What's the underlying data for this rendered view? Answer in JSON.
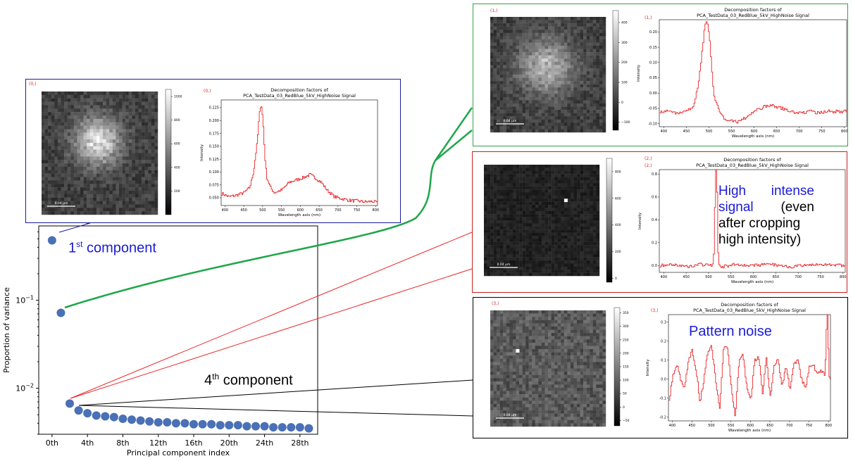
{
  "colors": {
    "scree_points": "#4a70b5",
    "signal": "#e8272a",
    "green_connector": "#1fa64a",
    "red_connector": "#e8272a",
    "black_connector": "#000000",
    "panel0_border": "#1a1aa0",
    "panel1_border": "#3aa04a",
    "panel2_border": "#cc1f1f",
    "panel3_border": "#000000",
    "annotation_text": "#1b1bd6"
  },
  "annotations": {
    "first_component_main": "1",
    "first_component_sup": "st",
    "first_component_rest": " component",
    "fourth_component_main": "4",
    "fourth_component_sup": "th",
    "fourth_component_rest": " component",
    "high_intense_line1a": "High",
    "high_intense_line1b": "intense",
    "high_intense_line2a": "signal",
    "high_intense_line2b": "(even",
    "high_intense_line3": "after cropping",
    "high_intense_line4": "high intensity)",
    "pattern_noise": "Pattern noise"
  },
  "chart_data": [
    {
      "type": "scatter",
      "xlabel": "Principal component index",
      "ylabel": "Proportion of variance",
      "yscale": "log",
      "ylim": [
        0.003,
        0.7
      ],
      "xlim": [
        -1.5,
        30
      ],
      "xtick_labels": [
        "0th",
        "4th",
        "8th",
        "12th",
        "16th",
        "20th",
        "24th",
        "28th"
      ],
      "xtick_values": [
        0,
        4,
        8,
        12,
        16,
        20,
        24,
        28
      ],
      "ytick_labels": [
        {
          "base": "10",
          "exp": "−1",
          "value": 0.1
        },
        {
          "base": "10",
          "exp": "−2",
          "value": 0.01
        }
      ],
      "x": [
        0,
        1,
        2,
        3,
        4,
        5,
        6,
        7,
        8,
        9,
        10,
        11,
        12,
        13,
        14,
        15,
        16,
        17,
        18,
        19,
        20,
        21,
        22,
        23,
        24,
        25,
        26,
        27,
        28,
        29
      ],
      "y": [
        0.48,
        0.072,
        0.0067,
        0.0056,
        0.0052,
        0.0049,
        0.0048,
        0.0047,
        0.0045,
        0.0044,
        0.0043,
        0.0042,
        0.0041,
        0.0041,
        0.004,
        0.004,
        0.0039,
        0.0039,
        0.0039,
        0.0038,
        0.0038,
        0.0038,
        0.0037,
        0.0037,
        0.0037,
        0.0036,
        0.0036,
        0.0036,
        0.0036,
        0.0035
      ]
    },
    {
      "type": "line",
      "panel": 0,
      "index_label": "(0,)",
      "title": [
        "Decomposition factors of",
        "PCA_TestData_03_RedBlue_5kV_HighNoise Signal"
      ],
      "xlabel": "Wavelength axis (nm)",
      "ylabel": "Intensity",
      "xlim": [
        390,
        805
      ],
      "ylim": [
        0.035,
        0.24
      ],
      "xticks": [
        "400",
        "450",
        "500",
        "550",
        "600",
        "650",
        "700",
        "750",
        "800"
      ],
      "xtick_values": [
        400,
        450,
        500,
        550,
        600,
        650,
        700,
        750,
        800
      ],
      "yticks": [
        "0.050",
        "0.075",
        "0.100",
        "0.125",
        "0.150",
        "0.175",
        "0.200",
        "0.225"
      ],
      "ytick_values": [
        0.05,
        0.075,
        0.1,
        0.125,
        0.15,
        0.175,
        0.2,
        0.225
      ],
      "x": [
        392,
        410,
        430,
        450,
        465,
        475,
        485,
        490,
        495,
        500,
        505,
        510,
        520,
        530,
        550,
        570,
        590,
        610,
        625,
        640,
        655,
        670,
        690,
        710,
        730,
        750,
        770,
        790,
        802
      ],
      "y": [
        0.058,
        0.052,
        0.055,
        0.06,
        0.07,
        0.1,
        0.16,
        0.21,
        0.235,
        0.2,
        0.13,
        0.09,
        0.07,
        0.06,
        0.065,
        0.08,
        0.085,
        0.09,
        0.095,
        0.088,
        0.08,
        0.065,
        0.052,
        0.048,
        0.045,
        0.044,
        0.042,
        0.043,
        0.041
      ],
      "image_colorbar_ticks": [
        "1000",
        "800",
        "600",
        "400",
        "200"
      ],
      "colorbar_values": [
        1000,
        800,
        600,
        400,
        200
      ],
      "colorbar_range": [
        0,
        1060
      ],
      "scalebar_label": "0.04 µm"
    },
    {
      "type": "line",
      "panel": 1,
      "index_label": "(1,)",
      "title": [
        "Decomposition factors of",
        "PCA_TestData_03_RedBlue_5kV_HighNoise Signal"
      ],
      "xlabel": "Wavelength axis (nm)",
      "ylabel": "Intensity",
      "xlim": [
        390,
        805
      ],
      "ylim": [
        -0.11,
        0.24
      ],
      "xticks": [
        "400",
        "450",
        "500",
        "550",
        "600",
        "650",
        "700",
        "750",
        "800"
      ],
      "xtick_values": [
        400,
        450,
        500,
        550,
        600,
        650,
        700,
        750,
        800
      ],
      "yticks": [
        "-0.10",
        "-0.05",
        "0.00",
        "0.05",
        "0.10",
        "0.15",
        "0.20"
      ],
      "ytick_values": [
        -0.1,
        -0.05,
        0,
        0.05,
        0.1,
        0.15,
        0.2
      ],
      "x": [
        392,
        410,
        430,
        450,
        465,
        475,
        485,
        490,
        495,
        500,
        505,
        510,
        520,
        530,
        545,
        560,
        580,
        600,
        620,
        640,
        660,
        680,
        700,
        720,
        740,
        760,
        780,
        802
      ],
      "y": [
        -0.06,
        -0.06,
        -0.065,
        -0.06,
        -0.04,
        0.02,
        0.15,
        0.22,
        0.24,
        0.19,
        0.08,
        -0.01,
        -0.05,
        -0.08,
        -0.09,
        -0.095,
        -0.08,
        -0.06,
        -0.045,
        -0.04,
        -0.05,
        -0.06,
        -0.065,
        -0.06,
        -0.065,
        -0.06,
        -0.06,
        -0.06
      ],
      "image_colorbar_ticks": [
        "400",
        "300",
        "200",
        "100",
        "0",
        "−100"
      ],
      "colorbar_values": [
        400,
        300,
        200,
        100,
        0,
        -100
      ],
      "colorbar_range": [
        -140,
        460
      ],
      "scalebar_label": "0.04 µm"
    },
    {
      "type": "line",
      "panel": 2,
      "index_label": "(2,)",
      "title": [
        "Decomposition factors of",
        "PCA_TestData_03_RedBlue_5kV_HighNoise Signal"
      ],
      "xlabel": "Wavelength axis (nm)",
      "ylabel": "Intensity",
      "xlim": [
        390,
        805
      ],
      "ylim": [
        -0.06,
        0.84
      ],
      "xticks": [
        "400",
        "450",
        "500",
        "550",
        "600",
        "650",
        "700",
        "750",
        "800"
      ],
      "xtick_values": [
        400,
        450,
        500,
        550,
        600,
        650,
        700,
        750,
        800
      ],
      "yticks": [
        "0.0",
        "0.2",
        "0.4",
        "0.6",
        "0.8"
      ],
      "ytick_values": [
        0,
        0.2,
        0.4,
        0.6,
        0.8
      ],
      "x": [
        392,
        420,
        450,
        480,
        510,
        515,
        517,
        519,
        521,
        530,
        560,
        600,
        640,
        680,
        720,
        760,
        802
      ],
      "y": [
        0.0,
        0.01,
        -0.01,
        0.01,
        0.0,
        0.84,
        0.84,
        0.4,
        0.0,
        -0.01,
        0.01,
        0.0,
        0.01,
        -0.01,
        0.0,
        0.01,
        0.0
      ],
      "image_colorbar_ticks": [
        "800",
        "600",
        "400",
        "200",
        "0"
      ],
      "colorbar_values": [
        800,
        600,
        400,
        200,
        0
      ],
      "colorbar_range": [
        -30,
        900
      ],
      "scalebar_label": "0.04 µm"
    },
    {
      "type": "line",
      "panel": 3,
      "index_label": "(3,)",
      "title": [
        "Decomposition factors of",
        "PCA_TestData_03_RedBlue_5kV_HighNoise Signal"
      ],
      "xlabel": "Wavelength axis (nm)",
      "ylabel": "Intensity",
      "xlim": [
        390,
        805
      ],
      "ylim": [
        -0.22,
        0.34
      ],
      "xticks": [
        "400",
        "450",
        "500",
        "550",
        "600",
        "650",
        "700",
        "750",
        "800"
      ],
      "xtick_values": [
        400,
        450,
        500,
        550,
        600,
        650,
        700,
        750,
        800
      ],
      "yticks": [
        "-0.2",
        "-0.1",
        "0.0",
        "0.1",
        "0.2",
        "0.3"
      ],
      "ytick_values": [
        -0.2,
        -0.1,
        0,
        0.1,
        0.2,
        0.3
      ],
      "x": [
        392,
        400,
        410,
        420,
        430,
        440,
        450,
        460,
        470,
        480,
        490,
        500,
        510,
        520,
        530,
        540,
        550,
        560,
        570,
        580,
        590,
        600,
        610,
        620,
        630,
        640,
        650,
        660,
        670,
        680,
        690,
        700,
        710,
        720,
        730,
        740,
        750,
        760,
        770,
        780,
        790,
        795,
        797,
        800,
        805
      ],
      "y": [
        -0.1,
        0.02,
        0.08,
        0.0,
        -0.05,
        0.1,
        0.15,
        0.05,
        -0.12,
        0.0,
        0.15,
        0.17,
        0.0,
        -0.17,
        0.16,
        0.17,
        -0.04,
        -0.2,
        0.1,
        0.14,
        -0.05,
        -0.12,
        0.1,
        0.12,
        -0.08,
        0.12,
        -0.1,
        0.07,
        0.1,
        -0.05,
        0.08,
        -0.05,
        0.07,
        0.1,
        0.0,
        -0.05,
        0.06,
        0.08,
        0.02,
        0.04,
        0.02,
        0.34,
        0.34,
        0.02,
        -0.02
      ],
      "image_colorbar_ticks": [
        "350",
        "300",
        "250",
        "200",
        "150",
        "100",
        "50",
        "0",
        "−50"
      ],
      "colorbar_values": [
        350,
        300,
        250,
        200,
        150,
        100,
        50,
        0,
        -50
      ],
      "colorbar_range": [
        -70,
        370
      ],
      "scalebar_label": "0.04 µm"
    }
  ]
}
